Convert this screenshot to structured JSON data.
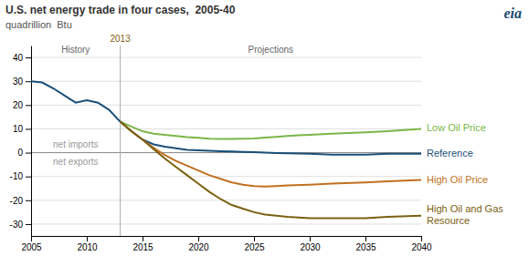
{
  "chart_data": {
    "type": "line",
    "title": "U.S. net energy trade in four cases,  2005-40",
    "y_label": "quadrillion  Btu",
    "xlim": [
      2005,
      2040
    ],
    "ylim": [
      -35,
      45
    ],
    "xticks": [
      2005,
      2010,
      2015,
      2020,
      2025,
      2030,
      2035,
      2040
    ],
    "yticks": [
      -30,
      -20,
      -10,
      0,
      10,
      20,
      30,
      40
    ],
    "grid": true,
    "history_line_x": 2013,
    "annotations": [
      "History",
      "Projections",
      "net imports",
      "net exports",
      "eia"
    ],
    "series": [
      {
        "color": "#1a4f78",
        "x": [
          2005,
          2006,
          2007,
          2008,
          2009,
          2010,
          2011,
          2012,
          2013
        ],
        "values": [
          30,
          29.5,
          27,
          24,
          21,
          22,
          21,
          18,
          13
        ]
      },
      {
        "name": "Low Oil Price",
        "color": "#7ab648",
        "x": [
          2013,
          2014,
          2015,
          2016,
          2017,
          2018,
          2019,
          2020,
          2021,
          2022,
          2023,
          2024,
          2025,
          2026,
          2027,
          2028,
          2029,
          2030,
          2032,
          2035,
          2037,
          2040
        ],
        "values": [
          13,
          11,
          9,
          8,
          7.5,
          7,
          6.5,
          6.2,
          5.9,
          5.8,
          5.8,
          5.9,
          6.0,
          6.3,
          6.6,
          7.0,
          7.3,
          7.5,
          8.0,
          8.5,
          9.0,
          10.0
        ]
      },
      {
        "name": "Reference",
        "color": "#1a4f78",
        "x": [
          2013,
          2014,
          2015,
          2016,
          2017,
          2018,
          2019,
          2020,
          2021,
          2022,
          2023,
          2024,
          2025,
          2026,
          2027,
          2028,
          2030,
          2032,
          2035,
          2037,
          2040
        ],
        "values": [
          13,
          9,
          5.5,
          3.5,
          2.5,
          1.8,
          1.2,
          1.0,
          0.8,
          0.6,
          0.5,
          0.3,
          0.2,
          0.0,
          -0.2,
          -0.3,
          -0.5,
          -0.8,
          -0.8,
          -0.5,
          -0.5
        ]
      },
      {
        "name": "High Oil Price",
        "color": "#c07020",
        "x": [
          2013,
          2014,
          2015,
          2016,
          2017,
          2018,
          2019,
          2020,
          2021,
          2022,
          2023,
          2024,
          2025,
          2026,
          2027,
          2028,
          2030,
          2032,
          2035,
          2037,
          2040
        ],
        "values": [
          13,
          9,
          5.5,
          2.0,
          -1.0,
          -3.5,
          -5.5,
          -7.5,
          -9.5,
          -11.0,
          -12.5,
          -13.5,
          -14.0,
          -14.2,
          -14.0,
          -13.8,
          -13.5,
          -13.0,
          -12.5,
          -12.0,
          -11.5
        ]
      },
      {
        "name": "High Oil and Gas\nResource",
        "color": "#7a6010",
        "x": [
          2013,
          2014,
          2015,
          2016,
          2017,
          2018,
          2019,
          2020,
          2021,
          2022,
          2023,
          2024,
          2025,
          2026,
          2027,
          2028,
          2030,
          2032,
          2035,
          2037,
          2040
        ],
        "values": [
          13,
          9,
          5.5,
          1.5,
          -2.5,
          -6.0,
          -9.5,
          -13.0,
          -16.5,
          -19.5,
          -22.0,
          -23.5,
          -25.0,
          -26.0,
          -26.5,
          -27.0,
          -27.5,
          -27.5,
          -27.5,
          -27.0,
          -26.5
        ]
      }
    ]
  }
}
